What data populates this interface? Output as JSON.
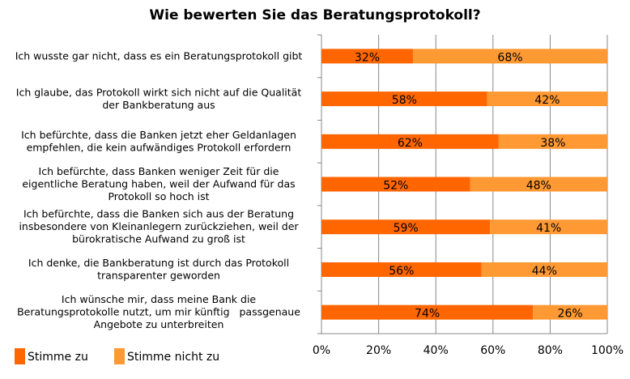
{
  "chart_data": {
    "type": "bar",
    "orientation": "horizontal",
    "stacked": "percent",
    "title": "Wie bewerten Sie das Beratungsprotokoll?",
    "categories": [
      [
        "Ich wusste gar nicht, dass es ein Beratungsprotokoll gibt"
      ],
      [
        "Ich glaube, das Protokoll wirkt sich nicht auf die Qualität",
        "der Bankberatung aus"
      ],
      [
        "Ich befürchte, dass die Banken jetzt eher Geldanlagen",
        "empfehlen, die kein aufwändiges Protokoll erfordern"
      ],
      [
        "Ich befürchte, dass Banken weniger Zeit für die",
        "eigentliche Beratung haben, weil der Aufwand für das",
        "Protokoll so hoch ist"
      ],
      [
        "Ich befürchte, dass die Banken sich aus der Beratung",
        "insbesondere von Kleinanlegern zurückziehen, weil der",
        "bürokratische Aufwand zu groß ist"
      ],
      [
        "Ich denke, die Bankberatung ist durch das Protokoll",
        "transparenter geworden"
      ],
      [
        "Ich wünsche mir, dass meine Bank die",
        "Beratungsprotokolle nutzt, um mir künftig   passgenaue",
        "Angebote zu unterbreiten"
      ]
    ],
    "series": [
      {
        "name": "Stimme zu",
        "color": "#FF6600",
        "values": [
          32,
          58,
          62,
          52,
          59,
          56,
          74
        ]
      },
      {
        "name": "Stimme nicht zu",
        "color": "#FF9933",
        "values": [
          68,
          42,
          38,
          48,
          41,
          44,
          26
        ]
      }
    ],
    "xlim": [
      0,
      100
    ],
    "xticks": [
      "0%",
      "20%",
      "40%",
      "60%",
      "80%",
      "100%"
    ],
    "grid": true,
    "legend": "bottom-left"
  }
}
